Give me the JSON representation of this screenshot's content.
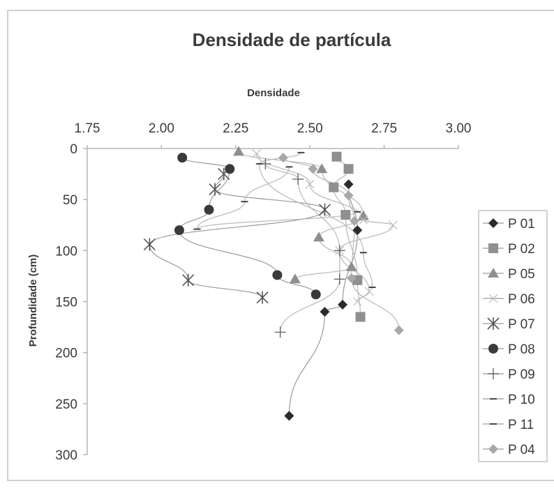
{
  "chart_data": {
    "type": "scatter",
    "title": "Densidade de partícula",
    "xlabel": "Densidade",
    "ylabel": "Profundidade (cm)",
    "xlim": [
      1.75,
      3.0
    ],
    "ylim": [
      0,
      300
    ],
    "y_reversed": true,
    "x_axis_position": "top",
    "x_ticks": [
      "1.75",
      "2.00",
      "2.25",
      "2.50",
      "2.75",
      "3.00"
    ],
    "y_ticks": [
      "0",
      "50",
      "100",
      "150",
      "200",
      "250",
      "300"
    ],
    "legend_position": "right",
    "grid": false,
    "series": [
      {
        "name": "P 01",
        "marker": "diamond",
        "points": [
          [
            2.63,
            35
          ],
          [
            2.66,
            80
          ],
          [
            2.61,
            153
          ],
          [
            2.55,
            160
          ],
          [
            2.43,
            262
          ]
        ]
      },
      {
        "name": "P 02",
        "marker": "square",
        "points": [
          [
            2.59,
            8
          ],
          [
            2.63,
            20
          ],
          [
            2.58,
            38
          ],
          [
            2.62,
            65
          ],
          [
            2.66,
            129
          ],
          [
            2.67,
            165
          ]
        ]
      },
      {
        "name": "P 05",
        "marker": "triangle",
        "points": [
          [
            2.26,
            3
          ],
          [
            2.54,
            20
          ],
          [
            2.68,
            66
          ],
          [
            2.53,
            87
          ],
          [
            2.64,
            116
          ],
          [
            2.45,
            128
          ]
        ]
      },
      {
        "name": "P 06",
        "marker": "cross",
        "points": [
          [
            2.32,
            5
          ],
          [
            2.5,
            35
          ],
          [
            2.68,
            70
          ],
          [
            2.78,
            75
          ],
          [
            2.6,
            100
          ],
          [
            2.7,
            140
          ],
          [
            2.66,
            150
          ]
        ]
      },
      {
        "name": "P 07",
        "marker": "x",
        "points": [
          [
            2.21,
            25
          ],
          [
            2.18,
            40
          ],
          [
            2.55,
            60
          ],
          [
            1.96,
            94
          ],
          [
            2.09,
            129
          ],
          [
            2.34,
            146
          ]
        ]
      },
      {
        "name": "P 08",
        "marker": "circle",
        "points": [
          [
            2.07,
            9
          ],
          [
            2.23,
            20
          ],
          [
            2.16,
            60
          ],
          [
            2.06,
            80
          ],
          [
            2.39,
            124
          ],
          [
            2.52,
            143
          ]
        ]
      },
      {
        "name": "P 09",
        "marker": "plus",
        "points": [
          [
            2.35,
            15
          ],
          [
            2.46,
            30
          ],
          [
            2.6,
            100
          ],
          [
            2.6,
            128
          ],
          [
            2.4,
            180
          ]
        ]
      },
      {
        "name": "P 10",
        "marker": "dash",
        "points": [
          [
            2.47,
            4
          ],
          [
            2.33,
            15
          ],
          [
            2.68,
            102
          ],
          [
            2.71,
            136
          ]
        ]
      },
      {
        "name": "P 11",
        "marker": "dash",
        "points": [
          [
            2.43,
            18
          ],
          [
            2.28,
            52
          ],
          [
            2.12,
            79
          ],
          [
            2.66,
            62
          ]
        ]
      },
      {
        "name": "P 04",
        "marker": "diamond",
        "points": [
          [
            2.41,
            9
          ],
          [
            2.51,
            20
          ],
          [
            2.63,
            46
          ],
          [
            2.65,
            71
          ],
          [
            2.64,
            127
          ],
          [
            2.8,
            178
          ]
        ]
      }
    ]
  }
}
